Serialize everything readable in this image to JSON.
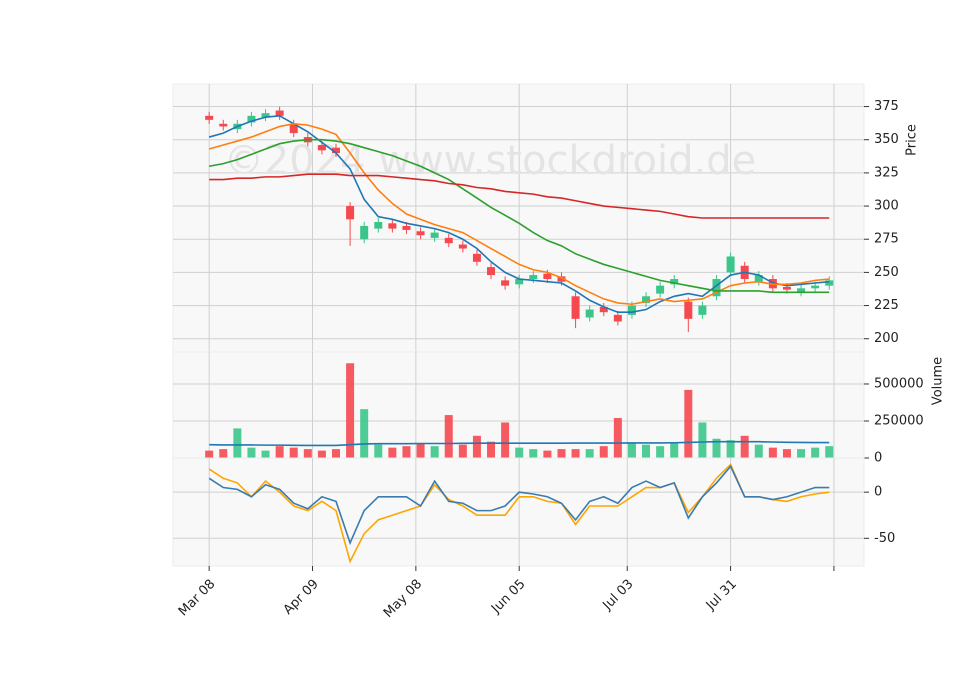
{
  "chart_data": [
    {
      "type": "candlestick",
      "watermark": "©2024 www.stockdroid.de",
      "y_label": "Price",
      "x": [
        0,
        3,
        6,
        9,
        12,
        15,
        18,
        21,
        24,
        27,
        30,
        33,
        36,
        39,
        42,
        45,
        48,
        51,
        54,
        57,
        60,
        63,
        66,
        69,
        72,
        75,
        78,
        81,
        84,
        87,
        90,
        93,
        96,
        99,
        102,
        105,
        108,
        111,
        114,
        117,
        120,
        123,
        126,
        129,
        132
      ],
      "open": [
        368,
        362,
        358,
        363,
        367,
        372,
        362,
        352,
        346,
        344,
        300,
        275,
        283,
        287,
        285,
        281,
        276,
        276,
        271,
        264,
        254,
        244,
        241,
        245,
        249,
        247,
        232,
        216,
        224,
        218,
        218,
        227,
        234,
        241,
        228,
        218,
        232,
        250,
        255,
        243,
        245,
        239,
        235,
        238,
        240
      ],
      "high": [
        371,
        365,
        365,
        371,
        373,
        375,
        365,
        355,
        349,
        347,
        303,
        288,
        291,
        290,
        288,
        284,
        283,
        279,
        274,
        267,
        257,
        247,
        248,
        251,
        252,
        250,
        235,
        225,
        227,
        221,
        228,
        235,
        243,
        248,
        231,
        228,
        248,
        265,
        258,
        251,
        248,
        242,
        241,
        243,
        247
      ],
      "low": [
        362,
        357,
        355,
        360,
        364,
        365,
        352,
        345,
        339,
        337,
        270,
        272,
        280,
        280,
        279,
        275,
        273,
        269,
        265,
        255,
        245,
        237,
        238,
        242,
        242,
        240,
        208,
        213,
        217,
        210,
        215,
        224,
        231,
        238,
        205,
        215,
        229,
        247,
        242,
        240,
        235,
        234,
        232,
        235,
        237
      ],
      "close": [
        365,
        360,
        362,
        368,
        370,
        368,
        355,
        348,
        342,
        340,
        290,
        285,
        288,
        283,
        282,
        278,
        280,
        272,
        268,
        258,
        248,
        240,
        245,
        248,
        245,
        243,
        215,
        222,
        220,
        213,
        225,
        232,
        240,
        245,
        215,
        225,
        245,
        262,
        245,
        248,
        238,
        237,
        238,
        240,
        244
      ],
      "up_color": "#3cc58a",
      "down_color": "#f5484f",
      "overlays": [
        {
          "color": "#1f77b4",
          "values": [
            352,
            355,
            360,
            364,
            367,
            368,
            362,
            356,
            348,
            340,
            328,
            305,
            292,
            290,
            287,
            285,
            283,
            280,
            275,
            268,
            258,
            250,
            245,
            244,
            243,
            242,
            236,
            229,
            224,
            220,
            220,
            222,
            228,
            232,
            234,
            232,
            240,
            248,
            250,
            248,
            242,
            240,
            241,
            242,
            243
          ]
        },
        {
          "color": "#ff7f0e",
          "values": [
            343,
            346,
            349,
            352,
            356,
            360,
            362,
            361,
            358,
            354,
            340,
            325,
            312,
            302,
            294,
            290,
            286,
            283,
            280,
            274,
            268,
            262,
            256,
            252,
            250,
            246,
            240,
            235,
            230,
            227,
            226,
            228,
            230,
            228,
            229,
            230,
            235,
            240,
            242,
            243,
            241,
            241,
            242,
            244,
            245
          ]
        },
        {
          "color": "#2ca02c",
          "values": [
            330,
            332,
            335,
            339,
            343,
            347,
            349,
            350,
            350,
            349,
            347,
            344,
            341,
            338,
            334,
            330,
            325,
            320,
            313,
            306,
            299,
            293,
            287,
            280,
            274,
            270,
            264,
            260,
            256,
            253,
            250,
            247,
            244,
            242,
            240,
            238,
            236,
            236,
            236,
            236,
            235,
            235,
            235,
            235,
            235
          ]
        },
        {
          "color": "#d62728",
          "values": [
            320,
            320,
            321,
            321,
            322,
            322,
            323,
            324,
            324,
            324,
            323,
            323,
            323,
            322,
            321,
            320,
            319,
            317,
            316,
            314,
            313,
            311,
            310,
            309,
            307,
            306,
            304,
            302,
            300,
            299,
            298,
            297,
            296,
            294,
            292,
            291,
            291,
            291,
            291,
            291,
            291,
            291,
            291,
            291,
            291
          ]
        }
      ],
      "xlim": [
        -7.7,
        139.4
      ],
      "ylim": [
        190,
        392
      ],
      "yticks": [
        200,
        225,
        250,
        275,
        300,
        325,
        350,
        375
      ],
      "grid": true
    },
    {
      "type": "bar",
      "y_label": "Volume",
      "x": [
        0,
        3,
        6,
        9,
        12,
        15,
        18,
        21,
        24,
        27,
        30,
        33,
        36,
        39,
        42,
        45,
        48,
        51,
        54,
        57,
        60,
        63,
        66,
        69,
        72,
        75,
        78,
        81,
        84,
        87,
        90,
        93,
        96,
        99,
        102,
        105,
        108,
        111,
        114,
        117,
        120,
        123,
        126,
        129,
        132
      ],
      "values": [
        50000,
        60000,
        200000,
        70000,
        50000,
        80000,
        70000,
        60000,
        50000,
        60000,
        640000,
        330000,
        90000,
        70000,
        80000,
        100000,
        80000,
        290000,
        90000,
        150000,
        110000,
        240000,
        70000,
        60000,
        50000,
        60000,
        60000,
        60000,
        80000,
        270000,
        100000,
        90000,
        80000,
        100000,
        460000,
        240000,
        130000,
        120000,
        150000,
        90000,
        70000,
        60000,
        60000,
        70000,
        80000
      ],
      "overlays": [
        {
          "color": "#1f77b4",
          "values": [
            90000,
            88000,
            88000,
            88000,
            87000,
            87000,
            86000,
            85000,
            85000,
            85000,
            90000,
            95000,
            97000,
            97000,
            97000,
            98000,
            98000,
            98000,
            99000,
            100000,
            100000,
            100000,
            100000,
            100000,
            100000,
            100000,
            101000,
            101000,
            101000,
            101000,
            102000,
            102000,
            102000,
            103000,
            105000,
            108000,
            110000,
            110000,
            110000,
            110000,
            108000,
            106000,
            105000,
            104000,
            104000
          ]
        }
      ],
      "xlim": [
        -7.7,
        139.4
      ],
      "ylim": [
        0,
        716000
      ],
      "yticks": [
        0,
        250000,
        500000
      ],
      "grid": true
    },
    {
      "type": "line",
      "x": [
        0,
        3,
        6,
        9,
        12,
        15,
        18,
        21,
        24,
        27,
        30,
        33,
        36,
        39,
        42,
        45,
        48,
        51,
        54,
        57,
        60,
        63,
        66,
        69,
        72,
        75,
        78,
        81,
        84,
        87,
        90,
        93,
        96,
        99,
        102,
        105,
        108,
        111,
        114,
        117,
        120,
        123,
        126,
        129,
        132
      ],
      "overlays": [
        {
          "color": "#ffa500",
          "values": [
            25,
            15,
            10,
            -5,
            12,
            0,
            -15,
            -20,
            -10,
            -20,
            -75,
            -45,
            -30,
            -25,
            -20,
            -15,
            8,
            -8,
            -15,
            -25,
            -25,
            -25,
            -5,
            -5,
            -10,
            -12,
            -35,
            -15,
            -15,
            -15,
            -5,
            5,
            5,
            10,
            -22,
            -5,
            15,
            30,
            -5,
            -5,
            -8,
            -10,
            -5,
            -2,
            0
          ]
        },
        {
          "color": "#3a7bb0",
          "values": [
            15,
            5,
            3,
            -5,
            8,
            3,
            -12,
            -18,
            -5,
            -10,
            -55,
            -20,
            -5,
            -5,
            -5,
            -15,
            12,
            -10,
            -12,
            -20,
            -20,
            -15,
            0,
            -2,
            -5,
            -12,
            -30,
            -10,
            -5,
            -12,
            5,
            12,
            5,
            10,
            -28,
            -5,
            10,
            28,
            -5,
            -5,
            -8,
            -5,
            0,
            5,
            5
          ]
        }
      ],
      "xlim": [
        -7.7,
        139.4
      ],
      "ylim": [
        -80,
        37
      ],
      "yticks": [
        -50,
        0
      ],
      "grid": true,
      "xticks": [
        {
          "value": 0,
          "label": "Mar 08"
        },
        {
          "value": 22,
          "label": "Apr 09"
        },
        {
          "value": 44,
          "label": "May 08"
        },
        {
          "value": 66,
          "label": "Jun 05"
        },
        {
          "value": 89,
          "label": "Jul 03"
        },
        {
          "value": 111,
          "label": "Jul 31"
        },
        {
          "value": 133,
          "label": null
        }
      ]
    }
  ]
}
